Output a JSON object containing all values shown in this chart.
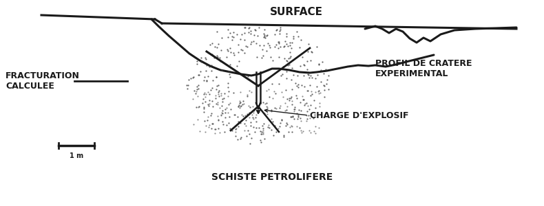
{
  "bg_color": "#ffffff",
  "line_color": "#1a1a1a",
  "dot_color": "#444444",
  "title_text": "SURFACE",
  "label_fracturation": "FRACTURATION\nCALCULEE",
  "label_profil": "PROFIL DE CRATERE\nEXPERIMENTAL",
  "label_charge": "CHARGE D'EXPLOSIF",
  "label_schiste": "SCHISTE PETROLIFERE",
  "scale_label": "1 m",
  "figsize": [
    7.9,
    3.0
  ],
  "dpi": 100
}
